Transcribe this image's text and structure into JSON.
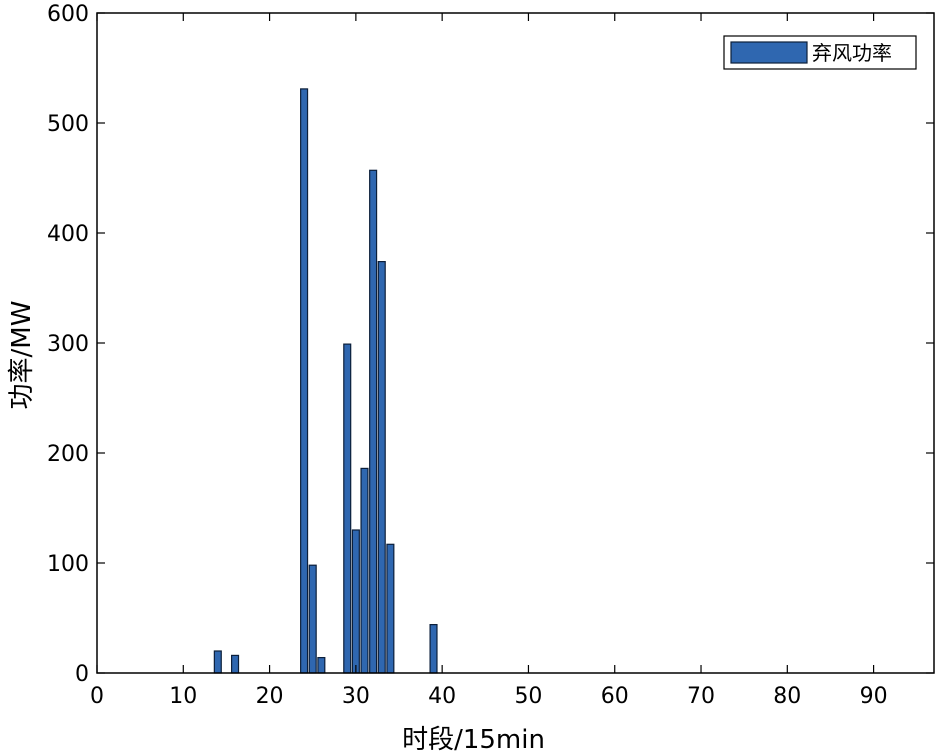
{
  "chart_data": {
    "type": "bar",
    "title": "",
    "xlabel": "时段/15min",
    "ylabel": "功率/MW",
    "xlim": [
      0,
      97
    ],
    "ylim": [
      0,
      600
    ],
    "xticks": [
      0,
      10,
      20,
      30,
      40,
      50,
      60,
      70,
      80,
      90
    ],
    "yticks": [
      0,
      100,
      200,
      300,
      400,
      500,
      600
    ],
    "grid": false,
    "legend_position": "top-right",
    "series": [
      {
        "name": "弃风功率",
        "color": "#2f67b0",
        "points": [
          {
            "x": 14,
            "y": 20
          },
          {
            "x": 16,
            "y": 16
          },
          {
            "x": 24,
            "y": 531
          },
          {
            "x": 25,
            "y": 98
          },
          {
            "x": 26,
            "y": 14
          },
          {
            "x": 29,
            "y": 299
          },
          {
            "x": 30,
            "y": 130
          },
          {
            "x": 31,
            "y": 186
          },
          {
            "x": 32,
            "y": 457
          },
          {
            "x": 33,
            "y": 374
          },
          {
            "x": 34,
            "y": 117
          },
          {
            "x": 39,
            "y": 44
          }
        ]
      }
    ]
  }
}
